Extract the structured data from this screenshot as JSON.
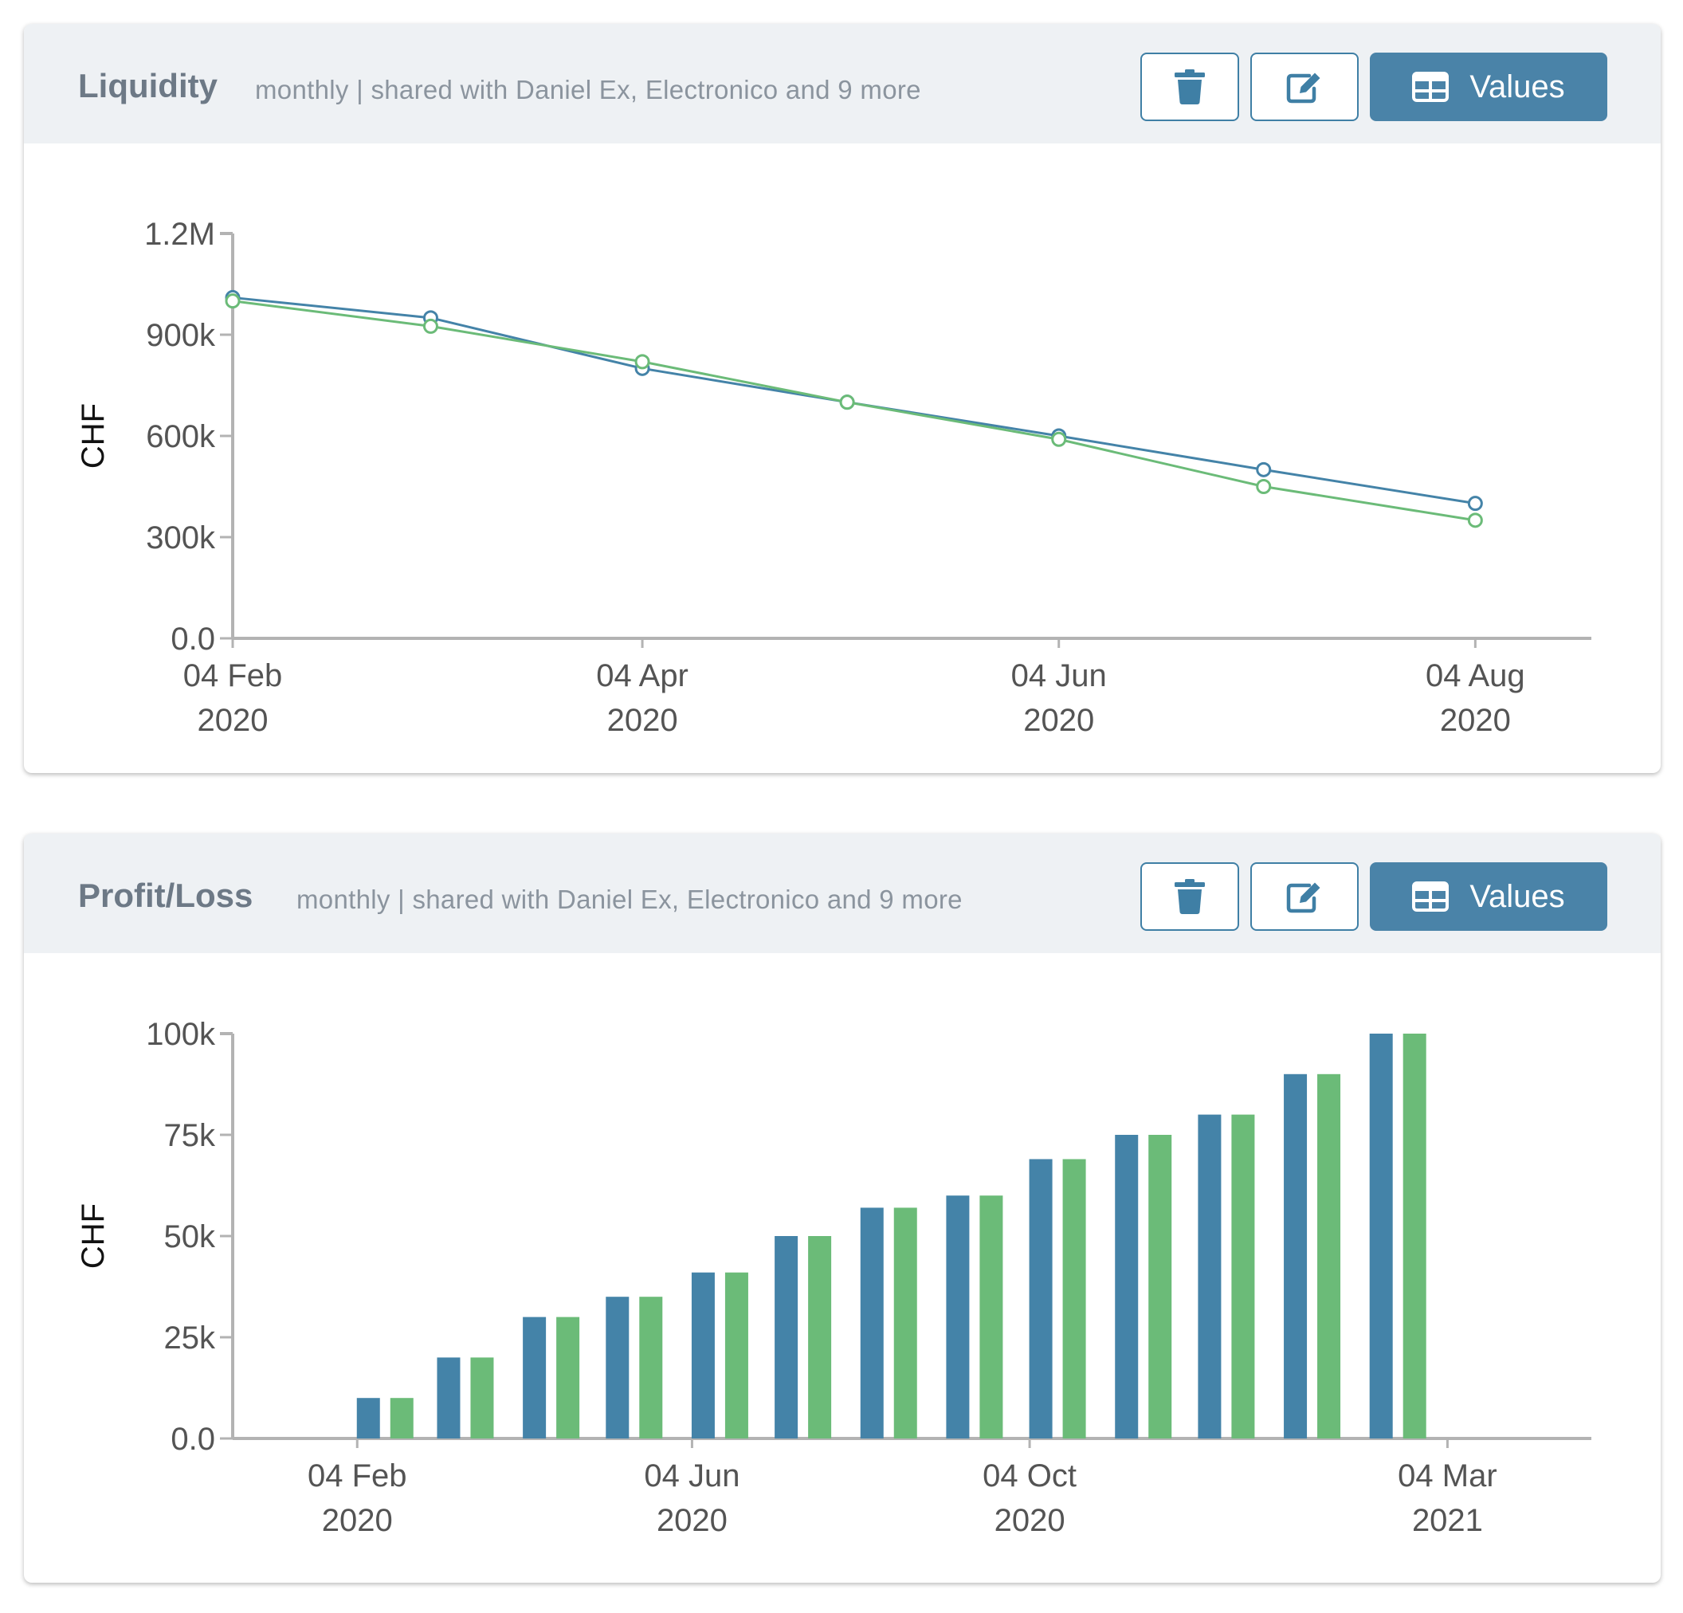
{
  "colors": {
    "series_blue": "#4483a8",
    "series_green": "#6bbb78",
    "accent": "#4a83a8"
  },
  "icons": {
    "delete": "trash-icon",
    "edit": "edit-icon",
    "values": "table-icon"
  },
  "cards": [
    {
      "title": "Liquidity",
      "subtitle": "monthly | shared with Daniel Ex, Electronico and 9 more",
      "values_label": "Values"
    },
    {
      "title": "Profit/Loss",
      "subtitle": "monthly | shared with Daniel Ex, Electronico and 9 more",
      "values_label": "Values"
    }
  ],
  "chart_data": [
    {
      "type": "line",
      "ylabel": "CHF",
      "ylim": [
        0,
        1200000
      ],
      "yticks": [
        0,
        300000,
        600000,
        900000,
        1200000
      ],
      "ytick_labels": [
        "0.0",
        "300k",
        "600k",
        "900k",
        "1.2M"
      ],
      "xlim": [
        "2020-02-04",
        "2020-08-21"
      ],
      "xticks": [
        {
          "date": "2020-02-04",
          "label": [
            "04 Feb",
            "2020"
          ]
        },
        {
          "date": "2020-04-04",
          "label": [
            "04 Apr",
            "2020"
          ]
        },
        {
          "date": "2020-06-04",
          "label": [
            "04 Jun",
            "2020"
          ]
        },
        {
          "date": "2020-08-04",
          "label": [
            "04 Aug",
            "2020"
          ]
        }
      ],
      "x": [
        "2020-02-04",
        "2020-03-04",
        "2020-04-04",
        "2020-05-04",
        "2020-06-04",
        "2020-07-04",
        "2020-08-04"
      ],
      "series": [
        {
          "color": "#4483a8",
          "values": [
            1010000,
            950000,
            800000,
            700000,
            600000,
            500000,
            400000
          ]
        },
        {
          "color": "#6bbb78",
          "values": [
            1000000,
            925000,
            820000,
            700000,
            590000,
            450000,
            350000
          ]
        }
      ],
      "grid": false
    },
    {
      "type": "bar",
      "ylabel": "CHF",
      "ylim": [
        0,
        100000
      ],
      "yticks": [
        0,
        25000,
        50000,
        75000,
        100000
      ],
      "ytick_labels": [
        "0.0",
        "25k",
        "50k",
        "75k",
        "100k"
      ],
      "xlim": [
        "2019-12-21",
        "2021-04-25"
      ],
      "xticks": [
        {
          "date": "2020-02-04",
          "label": [
            "04 Feb",
            "2020"
          ]
        },
        {
          "date": "2020-06-04",
          "label": [
            "04 Jun",
            "2020"
          ]
        },
        {
          "date": "2020-10-04",
          "label": [
            "04 Oct",
            "2020"
          ]
        },
        {
          "date": "2021-03-04",
          "label": [
            "04 Mar",
            "2021"
          ]
        }
      ],
      "x": [
        "2020-02-04",
        "2020-03-04",
        "2020-04-04",
        "2020-05-04",
        "2020-06-04",
        "2020-07-04",
        "2020-08-04",
        "2020-09-04",
        "2020-10-04",
        "2020-11-04",
        "2020-12-04",
        "2021-01-04",
        "2021-02-04"
      ],
      "series": [
        {
          "color": "#4483a8",
          "values": [
            10000,
            20000,
            30000,
            35000,
            41000,
            50000,
            57000,
            60000,
            69000,
            75000,
            80000,
            90000,
            100000
          ]
        },
        {
          "color": "#6bbb78",
          "values": [
            10000,
            20000,
            30000,
            35000,
            41000,
            50000,
            57000,
            60000,
            69000,
            75000,
            80000,
            90000,
            100000
          ]
        }
      ],
      "grid": false
    }
  ]
}
